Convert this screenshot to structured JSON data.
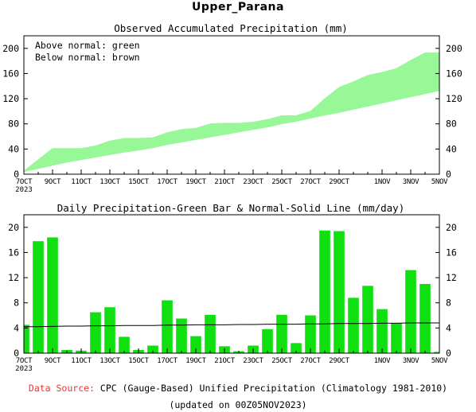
{
  "page_title": "Upper_Parana",
  "footer": {
    "source_label": "Data Source:",
    "source_text": "CPC (Gauge-Based) Unified Precipitation (Climatology 1981-2010)",
    "updated_text": "(updated on 00Z05NOV2023)"
  },
  "colors": {
    "above_fill": "#98f898",
    "below_fill": "#c8a46e",
    "bar_fill": "#10e010",
    "normal_line": "#000000",
    "source_label": "#e8342c"
  },
  "chart_data": [
    {
      "type": "area",
      "title": "Observed Accumulated Precipitation (mm)",
      "annotations": [
        "Above normal: green",
        "Below normal: brown"
      ],
      "ylim": [
        0,
        220
      ],
      "yticks": [
        "0",
        "40",
        "80",
        "120",
        "160",
        "200"
      ],
      "x_day_range": [
        7,
        36
      ],
      "x_ticks": [
        {
          "day": 7,
          "label": "7OCT",
          "sub": "2023"
        },
        {
          "day": 9,
          "label": "9OCT"
        },
        {
          "day": 11,
          "label": "11OCT"
        },
        {
          "day": 13,
          "label": "13OCT"
        },
        {
          "day": 15,
          "label": "15OCT"
        },
        {
          "day": 17,
          "label": "17OCT"
        },
        {
          "day": 19,
          "label": "19OCT"
        },
        {
          "day": 21,
          "label": "21OCT"
        },
        {
          "day": 23,
          "label": "23OCT"
        },
        {
          "day": 25,
          "label": "25OCT"
        },
        {
          "day": 27,
          "label": "27OCT"
        },
        {
          "day": 29,
          "label": "29OCT"
        },
        {
          "day": 32,
          "label": "1NOV"
        },
        {
          "day": 34,
          "label": "3NOV"
        },
        {
          "day": 36,
          "label": "5NOV"
        }
      ],
      "days": [
        7,
        8,
        9,
        10,
        11,
        12,
        13,
        14,
        15,
        16,
        17,
        18,
        19,
        20,
        21,
        22,
        23,
        24,
        25,
        26,
        27,
        28,
        29,
        30,
        31,
        32,
        33,
        34,
        35,
        36
      ],
      "series": [
        {
          "name": "Observed",
          "values": [
            5,
            23,
            41,
            41,
            41,
            45,
            53,
            57,
            57,
            58,
            66,
            71,
            73,
            80,
            81,
            81,
            83,
            87,
            93,
            93,
            100,
            120,
            138,
            147,
            157,
            162,
            168,
            181,
            193,
            193
          ]
        },
        {
          "name": "Normal",
          "values": [
            4,
            9,
            14,
            19,
            23,
            27,
            31,
            35,
            38,
            42,
            47,
            51,
            55,
            59,
            63,
            67,
            71,
            75,
            80,
            84,
            89,
            94,
            98,
            103,
            108,
            113,
            118,
            123,
            128,
            133
          ]
        }
      ]
    },
    {
      "type": "bar",
      "title": "Daily Precipitation-Green Bar & Normal-Solid Line (mm/day)",
      "ylim": [
        0,
        22
      ],
      "yticks": [
        "0",
        "4",
        "8",
        "12",
        "16",
        "20"
      ],
      "days": [
        7,
        8,
        9,
        10,
        11,
        12,
        13,
        14,
        15,
        16,
        17,
        18,
        19,
        20,
        21,
        22,
        23,
        24,
        25,
        26,
        27,
        28,
        29,
        30,
        31,
        32,
        33,
        34,
        35,
        36
      ],
      "values": [
        4.5,
        17.8,
        18.4,
        0.5,
        0.4,
        6.5,
        7.3,
        2.6,
        0.5,
        1.2,
        8.4,
        5.5,
        2.7,
        6.1,
        1.1,
        0.3,
        1.2,
        3.8,
        6.1,
        1.6,
        6.0,
        19.5,
        19.4,
        8.8,
        10.7,
        7.0,
        4.8,
        13.2,
        11.0,
        0.2
      ],
      "normal": {
        "name": "Normal",
        "values": [
          4.2,
          4.2,
          4.25,
          4.3,
          4.3,
          4.35,
          4.35,
          4.4,
          4.4,
          4.4,
          4.45,
          4.45,
          4.5,
          4.5,
          4.5,
          4.55,
          4.55,
          4.6,
          4.6,
          4.6,
          4.65,
          4.65,
          4.7,
          4.7,
          4.7,
          4.75,
          4.75,
          4.8,
          4.8,
          4.8
        ]
      }
    }
  ]
}
